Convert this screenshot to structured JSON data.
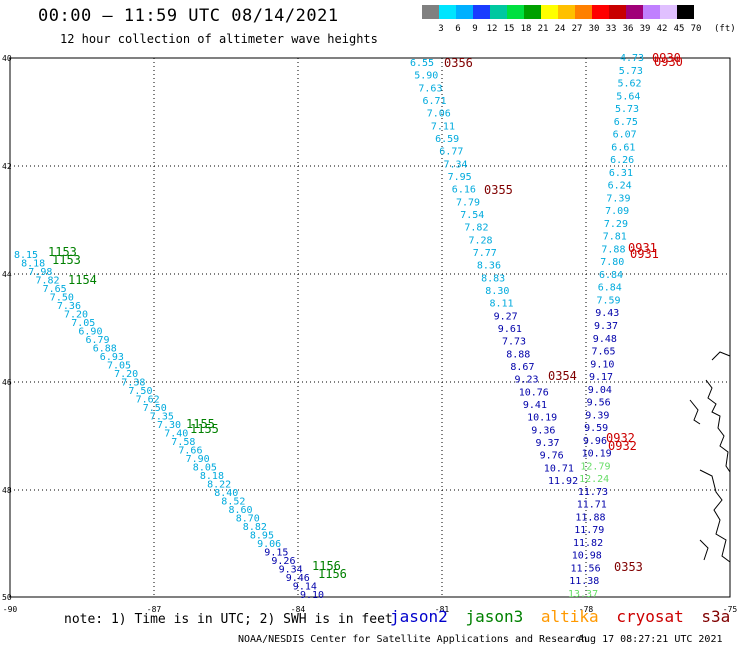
{
  "header": {
    "title": "00:00 – 11:59 UTC 08/14/2021",
    "subtitle": "12 hour collection of altimeter wave heights"
  },
  "colorbar": {
    "labels": [
      "3",
      "6",
      "9",
      "12",
      "15",
      "18",
      "21",
      "24",
      "27",
      "30",
      "33",
      "36",
      "39",
      "42",
      "45",
      "70"
    ],
    "unit": "(ft)",
    "colors": [
      "#808080",
      "#00e5ff",
      "#00b0ff",
      "#1a3cff",
      "#00c8a0",
      "#00e040",
      "#00a000",
      "#ffff00",
      "#ffc000",
      "#ff8000",
      "#ff0000",
      "#c80000",
      "#a00078",
      "#c080ff",
      "#e0c0ff",
      "#000000"
    ]
  },
  "axes": {
    "lat_labels": [
      "40",
      "42",
      "44",
      "46",
      "48",
      "50"
    ],
    "lon_labels": [
      "-90",
      "-87",
      "-84",
      "-81",
      "-78",
      "-75"
    ]
  },
  "colors": {
    "jason2": "#0000cc",
    "jason3": "#008000",
    "altika": "#ff9900",
    "cryosat": "#cc0000",
    "s3a": "#800000",
    "swh_light": "#00aadd",
    "swh_dark": "#0000aa",
    "swh_light_green": "#66dd66"
  },
  "tracks": {
    "left_values": [
      "8.15",
      "8.18",
      "7.98",
      "7.82",
      "7.65",
      "7.50",
      "7.36",
      "7.20",
      "7.05",
      "6.90",
      "6.79",
      "6.88",
      "6.93",
      "7.05",
      "7.20",
      "7.38",
      "7.50",
      "7.62",
      "7.50",
      "7.35",
      "7.30",
      "7.40",
      "7.58",
      "7.66",
      "7.90",
      "8.05",
      "8.18",
      "8.22",
      "8.40",
      "8.52",
      "8.60",
      "8.70",
      "8.82",
      "8.95",
      "9.06",
      "9.15",
      "9.26",
      "9.34",
      "9.46",
      "9.14",
      "9.10"
    ],
    "left_times": [
      {
        "text": "1153",
        "color": "jason3"
      },
      {
        "text": "1153",
        "color": "jason3"
      },
      {
        "text": "1154",
        "color": "jason3"
      },
      {
        "text": "1155",
        "color": "jason3"
      },
      {
        "text": "1155",
        "color": "jason3"
      },
      {
        "text": "1156",
        "color": "jason3"
      },
      {
        "text": "1156",
        "color": "jason3"
      }
    ],
    "center_values": [
      "6.55",
      "5.90",
      "7.63",
      "6.71",
      "7.06",
      "7.11",
      "6.59",
      "6.77",
      "7.34",
      "7.95",
      "6.16",
      "7.79",
      "7.54",
      "7.82",
      "7.28",
      "7.77",
      "8.36",
      "8.83",
      "8.30",
      "8.11",
      "9.27",
      "9.61",
      "7.73",
      "8.88",
      "8.67",
      "9.23",
      "10.76",
      "9.41",
      "10.19",
      "9.36",
      "9.37",
      "9.76",
      "10.71",
      "11.92"
    ],
    "center_times": [
      {
        "text": "0356",
        "color": "s3a"
      },
      {
        "text": "0355",
        "color": "s3a"
      },
      {
        "text": "0354",
        "color": "s3a"
      }
    ],
    "right_values": [
      "4.73",
      "5.73",
      "5.62",
      "5.64",
      "5.73",
      "6.75",
      "6.07",
      "6.61",
      "6.26",
      "6.31",
      "6.24",
      "7.39",
      "7.09",
      "7.29",
      "7.81",
      "7.88",
      "7.80",
      "6.84",
      "6.84",
      "7.59",
      "9.43",
      "9.37",
      "9.48",
      "7.65",
      "9.10",
      "9.17",
      "9.04",
      "9.56",
      "9.39",
      "9.59",
      "9.96",
      "10.19",
      "12.79",
      "12.24",
      "11.73",
      "11.71",
      "11.88",
      "11.79",
      "11.82",
      "10.98",
      "11.56",
      "11.38",
      "13.37"
    ],
    "right_times": [
      {
        "text": "0930",
        "color": "cryosat"
      },
      {
        "text": "0930",
        "color": "cryosat"
      },
      {
        "text": "0931",
        "color": "cryosat"
      },
      {
        "text": "0931",
        "color": "cryosat"
      },
      {
        "text": "0932",
        "color": "cryosat"
      },
      {
        "text": "0932",
        "color": "cryosat"
      },
      {
        "text": "0353",
        "color": "s3a"
      }
    ]
  },
  "footer": {
    "note": "note: 1) Time is in UTC; 2) SWH is in feet",
    "legend": [
      {
        "name": "jason2",
        "color": "#0000cc"
      },
      {
        "name": "jason3",
        "color": "#008000"
      },
      {
        "name": "altika",
        "color": "#ff9900"
      },
      {
        "name": "cryosat",
        "color": "#cc0000"
      },
      {
        "name": "s3a",
        "color": "#800000"
      }
    ],
    "credit": "NOAA/NESDIS Center for Satellite Applications and Research",
    "date": "Aug 17 08:27:21 UTC 2021"
  }
}
